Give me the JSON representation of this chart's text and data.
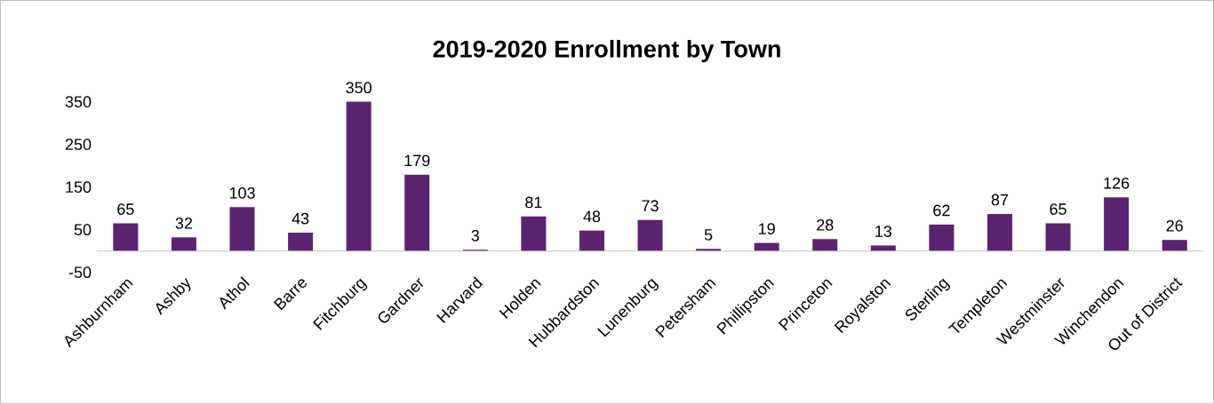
{
  "chart_data": {
    "type": "bar",
    "title": "2019-2020 Enrollment by Town",
    "categories": [
      "Ashburnham",
      "Ashby",
      "Athol",
      "Barre",
      "Fitchburg",
      "Gardner",
      "Harvard",
      "Holden",
      "Hubbardston",
      "Lunenburg",
      "Petersham",
      "Phillipston",
      "Princeton",
      "Royalston",
      "Sterling",
      "Templeton",
      "Westminster",
      "Winchendon",
      "Out of District"
    ],
    "values": [
      65,
      32,
      103,
      43,
      350,
      179,
      3,
      81,
      48,
      73,
      5,
      19,
      28,
      13,
      62,
      87,
      65,
      126,
      26
    ],
    "color": "#5b2370",
    "ylim": [
      -50,
      350
    ],
    "yticks": [
      -50,
      50,
      150,
      250,
      350
    ],
    "data_labels": true
  }
}
